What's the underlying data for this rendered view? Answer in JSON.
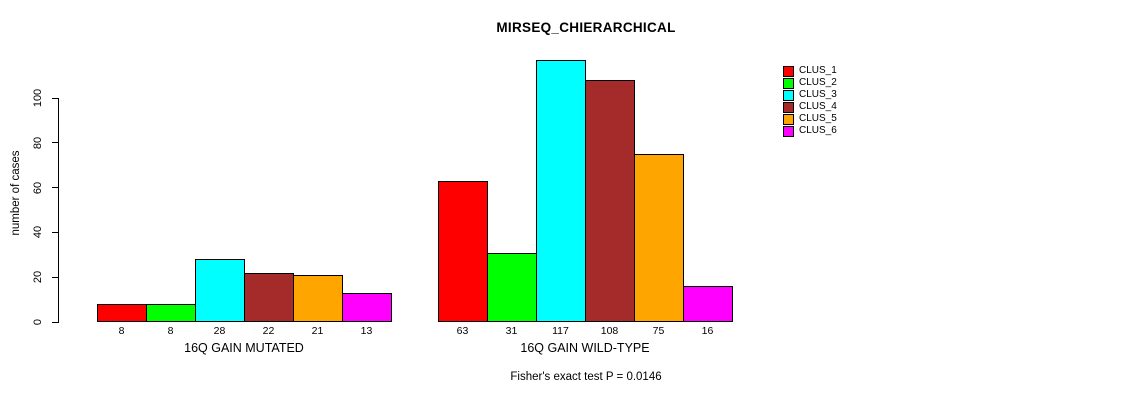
{
  "title": "MIRSEQ_CHIERARCHICAL",
  "footer": "Fisher's exact test P = 0.0146",
  "chart_data": {
    "type": "bar",
    "title": "MIRSEQ_CHIERARCHICAL",
    "xlabel": "",
    "ylabel": "number of cases",
    "ylim": [
      0,
      117
    ],
    "yticks": [
      0,
      20,
      40,
      60,
      80,
      100
    ],
    "grid": false,
    "legend_position": "right-outside",
    "value_labels_shown": true,
    "annotation": "Fisher's exact test P = 0.0146",
    "series": [
      {
        "name": "CLUS_1",
        "color": "#FF0000",
        "values": [
          8,
          63
        ]
      },
      {
        "name": "CLUS_2",
        "color": "#00FF00",
        "values": [
          8,
          31
        ]
      },
      {
        "name": "CLUS_3",
        "color": "#00FFFF",
        "values": [
          28,
          117
        ]
      },
      {
        "name": "CLUS_4",
        "color": "#A52A2A",
        "values": [
          22,
          108
        ]
      },
      {
        "name": "CLUS_5",
        "color": "#FFA500",
        "values": [
          21,
          75
        ]
      },
      {
        "name": "CLUS_6",
        "color": "#FF00FF",
        "values": [
          13,
          16
        ]
      }
    ],
    "groups": [
      {
        "label": "16Q GAIN MUTATED",
        "values": [
          8,
          8,
          28,
          22,
          21,
          13
        ]
      },
      {
        "label": "16Q GAIN WILD-TYPE",
        "values": [
          63,
          31,
          117,
          108,
          75,
          16
        ]
      }
    ]
  }
}
